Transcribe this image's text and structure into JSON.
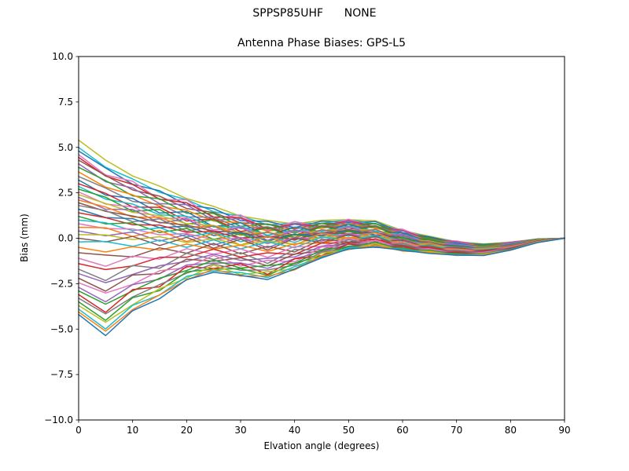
{
  "figure": {
    "suptitle": "SPPSP85UHF      NONE",
    "background": "#ffffff"
  },
  "chart_data": {
    "type": "line",
    "title": "Antenna Phase Biases: GPS-L5",
    "xlabel": "Elvation angle (degrees)",
    "ylabel": "Bias (mm)",
    "xlim": [
      0,
      90
    ],
    "ylim": [
      -10,
      10
    ],
    "grid": false,
    "legend": "none",
    "axes_color": "#000000",
    "xticks": [
      0,
      10,
      20,
      30,
      40,
      50,
      60,
      70,
      80,
      90
    ],
    "xtick_labels": [
      "0",
      "10",
      "20",
      "30",
      "40",
      "50",
      "60",
      "70",
      "80",
      "90"
    ],
    "yticks": [
      -10,
      -7.5,
      -5,
      -2.5,
      0,
      2.5,
      5,
      7.5,
      10
    ],
    "ytick_labels": [
      "−10.0",
      "−7.5",
      "−5.0",
      "−2.5",
      "0.0",
      "2.5",
      "5.0",
      "7.5",
      "10.0"
    ],
    "palette": [
      "#1f77b4",
      "#ff7f0e",
      "#2ca02c",
      "#d62728",
      "#9467bd",
      "#8c564b",
      "#e377c2",
      "#7f7f7f",
      "#bcbd22",
      "#17becf"
    ],
    "line_width": 1.5,
    "x": [
      0,
      5,
      10,
      15,
      20,
      25,
      30,
      35,
      40,
      45,
      50,
      55,
      60,
      65,
      70,
      75,
      80,
      85,
      90
    ],
    "value_model": "value[i] = start * (start >= 0 ? shape.w_pos[i] : shape.w_neg[i]) + shape.common[i] + wiggle * shape.wiggle_shape[i]; all curves converge to 0.0 mm at 90 degrees",
    "shape": {
      "w_pos": [
        1.0,
        0.8,
        0.66,
        0.55,
        0.45,
        0.36,
        0.29,
        0.235,
        0.2,
        0.185,
        0.185,
        0.17,
        0.13,
        0.1,
        0.08,
        0.06,
        0.045,
        0.02,
        0
      ],
      "w_neg": [
        1.0,
        1.26,
        0.93,
        0.75,
        0.5,
        0.38,
        0.42,
        0.45,
        0.35,
        0.24,
        0.155,
        0.11,
        0.1,
        0.09,
        0.08,
        0.07,
        0.05,
        0.02,
        0
      ],
      "common": [
        0,
        -0.05,
        -0.1,
        -0.15,
        -0.2,
        -0.25,
        -0.3,
        -0.35,
        -0.25,
        -0.05,
        0.05,
        0,
        -0.25,
        -0.45,
        -0.6,
        -0.65,
        -0.45,
        -0.15,
        0
      ],
      "wiggle_shape": [
        0,
        0.15,
        -0.2,
        0.25,
        -0.25,
        0.3,
        -0.25,
        0.3,
        -0.25,
        0.2,
        -0.15,
        0.2,
        -0.15,
        0.1,
        -0.08,
        0.05,
        -0.03,
        0.02,
        0
      ]
    },
    "series": [
      {
        "start": 5.4,
        "color": 8,
        "wiggle": 0.2
      },
      {
        "start": 5.0,
        "color": 9,
        "wiggle": -0.3
      },
      {
        "start": 4.8,
        "color": 0,
        "wiggle": 0.5
      },
      {
        "start": 4.6,
        "color": 6,
        "wiggle": -1.0
      },
      {
        "start": 4.45,
        "color": 3,
        "wiggle": -0.6
      },
      {
        "start": 4.3,
        "color": 5,
        "wiggle": 0.4
      },
      {
        "start": 4.1,
        "color": 4,
        "wiggle": -0.8
      },
      {
        "start": 3.9,
        "color": 2,
        "wiggle": 0.7
      },
      {
        "start": 3.65,
        "color": 1,
        "wiggle": -0.4
      },
      {
        "start": 3.4,
        "color": 7,
        "wiggle": 0.6
      },
      {
        "start": 3.2,
        "color": 0,
        "wiggle": -0.9
      },
      {
        "start": 3.0,
        "color": 3,
        "wiggle": 0.8
      },
      {
        "start": 2.85,
        "color": 9,
        "wiggle": -0.5
      },
      {
        "start": 2.7,
        "color": 2,
        "wiggle": 1.0
      },
      {
        "start": 2.55,
        "color": 6,
        "wiggle": -0.7
      },
      {
        "start": 2.4,
        "color": 8,
        "wiggle": 0.3
      },
      {
        "start": 2.25,
        "color": 4,
        "wiggle": -1.0
      },
      {
        "start": 2.1,
        "color": 1,
        "wiggle": 0.6
      },
      {
        "start": 1.95,
        "color": 5,
        "wiggle": -0.2
      },
      {
        "start": 1.8,
        "color": 7,
        "wiggle": 0.9
      },
      {
        "start": 1.6,
        "color": 0,
        "wiggle": -0.6
      },
      {
        "start": 1.4,
        "color": 3,
        "wiggle": 0.4
      },
      {
        "start": 1.2,
        "color": 2,
        "wiggle": -0.8
      },
      {
        "start": 1.0,
        "color": 9,
        "wiggle": 0.7
      },
      {
        "start": 0.8,
        "color": 6,
        "wiggle": -0.4
      },
      {
        "start": 0.6,
        "color": 1,
        "wiggle": 1.0
      },
      {
        "start": 0.4,
        "color": 4,
        "wiggle": -0.9
      },
      {
        "start": 0.2,
        "color": 8,
        "wiggle": 0.5
      },
      {
        "start": 0.0,
        "color": 5,
        "wiggle": -1.0
      },
      {
        "start": -0.2,
        "color": 9,
        "wiggle": 0.8
      },
      {
        "start": -0.5,
        "color": 1,
        "wiggle": -0.5
      },
      {
        "start": -0.8,
        "color": 5,
        "wiggle": 0.9
      },
      {
        "start": -1.1,
        "color": 6,
        "wiggle": -0.7
      },
      {
        "start": -1.4,
        "color": 3,
        "wiggle": 0.6
      },
      {
        "start": -1.7,
        "color": 7,
        "wiggle": -0.9
      },
      {
        "start": -1.95,
        "color": 4,
        "wiggle": 0.4
      },
      {
        "start": -2.2,
        "color": 5,
        "wiggle": -0.6
      },
      {
        "start": -2.45,
        "color": 6,
        "wiggle": 0.8
      },
      {
        "start": -2.7,
        "color": 4,
        "wiggle": -0.3
      },
      {
        "start": -2.9,
        "color": 2,
        "wiggle": 0.5
      },
      {
        "start": -3.1,
        "color": 3,
        "wiggle": -0.8
      },
      {
        "start": -3.3,
        "color": 7,
        "wiggle": 0.3
      },
      {
        "start": -3.5,
        "color": 2,
        "wiggle": -0.4
      },
      {
        "start": -3.7,
        "color": 8,
        "wiggle": 0.6
      },
      {
        "start": -3.9,
        "color": 9,
        "wiggle": -0.2
      },
      {
        "start": -4.05,
        "color": 1,
        "wiggle": 0.3
      },
      {
        "start": -4.2,
        "color": 0,
        "wiggle": -0.1
      }
    ]
  }
}
